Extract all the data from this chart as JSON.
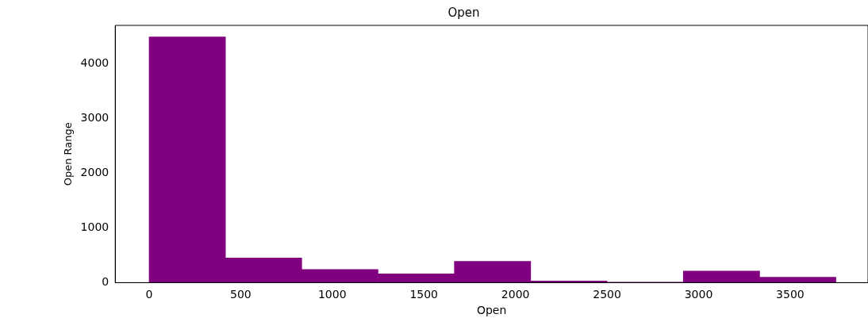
{
  "chart_data": {
    "type": "histogram",
    "title": "Open",
    "xlabel": "Open",
    "ylabel": "Open Range",
    "bins": [
      0,
      417,
      833,
      1250,
      1667,
      2083,
      2500,
      2917,
      3333,
      3750
    ],
    "values": [
      4490,
      450,
      240,
      160,
      390,
      30,
      10,
      210,
      100
    ],
    "color": "#800080",
    "xlim": [
      -185,
      3925
    ],
    "xticks": [
      0,
      500,
      1000,
      1500,
      2000,
      2500,
      3000,
      3500
    ],
    "ylim": [
      0,
      4700
    ],
    "yticks": [
      0,
      1000,
      2000,
      3000,
      4000
    ],
    "grid": false,
    "legend": false
  }
}
